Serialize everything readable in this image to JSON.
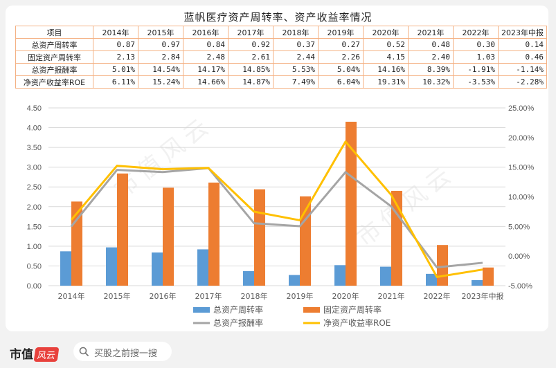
{
  "chart_data": {
    "type": "bar",
    "title": "蓝帆医疗资产周转率、资产收益率情况",
    "categories": [
      "2014年",
      "2015年",
      "2016年",
      "2017年",
      "2018年",
      "2019年",
      "2020年",
      "2021年",
      "2022年",
      "2023年中报"
    ],
    "table": {
      "header_label": "项目",
      "rows": [
        {
          "label": "总资产周转率",
          "values": [
            "0.87",
            "0.97",
            "0.84",
            "0.92",
            "0.37",
            "0.27",
            "0.52",
            "0.48",
            "0.30",
            "0.14"
          ]
        },
        {
          "label": "固定资产周转率",
          "values": [
            "2.13",
            "2.84",
            "2.48",
            "2.61",
            "2.44",
            "2.26",
            "4.15",
            "2.40",
            "1.03",
            "0.46"
          ]
        },
        {
          "label": "总资产报酬率",
          "values": [
            "5.01%",
            "14.54%",
            "14.17%",
            "14.85%",
            "5.53%",
            "5.04%",
            "14.16%",
            "8.39%",
            "-1.91%",
            "-1.14%"
          ]
        },
        {
          "label": "净资产收益率ROE",
          "values": [
            "6.11%",
            "15.24%",
            "14.66%",
            "14.87%",
            "7.49%",
            "6.04%",
            "19.31%",
            "10.32%",
            "-3.53%",
            "-2.28%"
          ]
        }
      ]
    },
    "series": [
      {
        "name": "总资产周转率",
        "type": "bar",
        "axis": "left",
        "color": "#5b9bd5",
        "values": [
          0.87,
          0.97,
          0.84,
          0.92,
          0.37,
          0.27,
          0.52,
          0.48,
          0.3,
          0.14
        ]
      },
      {
        "name": "固定资产周转率",
        "type": "bar",
        "axis": "left",
        "color": "#ed7d31",
        "values": [
          2.13,
          2.84,
          2.48,
          2.61,
          2.44,
          2.26,
          4.15,
          2.4,
          1.03,
          0.46
        ]
      },
      {
        "name": "总资产报酬率",
        "type": "line",
        "axis": "right",
        "color": "#a5a5a5",
        "values": [
          5.01,
          14.54,
          14.17,
          14.85,
          5.53,
          5.04,
          14.16,
          8.39,
          -1.91,
          -1.14
        ]
      },
      {
        "name": "净资产收益率ROE",
        "type": "line",
        "axis": "right",
        "color": "#ffc000",
        "values": [
          6.11,
          15.24,
          14.66,
          14.87,
          7.49,
          6.04,
          19.31,
          10.32,
          -3.53,
          -2.28
        ]
      }
    ],
    "y_left": {
      "min": 0,
      "max": 4.5,
      "step": 0.5,
      "ticks": [
        "0.00",
        "0.50",
        "1.00",
        "1.50",
        "2.00",
        "2.50",
        "3.00",
        "3.50",
        "4.00",
        "4.50"
      ]
    },
    "y_right": {
      "min": -5,
      "max": 25,
      "step": 5,
      "ticks": [
        "-5.00%",
        "0.00%",
        "5.00%",
        "10.00%",
        "15.00%",
        "20.00%",
        "25.00%"
      ]
    },
    "grid": true,
    "legend_position": "bottom"
  },
  "footer": {
    "logo_text": "市值",
    "logo_badge": "风云",
    "search_placeholder": "买股之前搜一搜"
  },
  "watermark": "市值风云"
}
